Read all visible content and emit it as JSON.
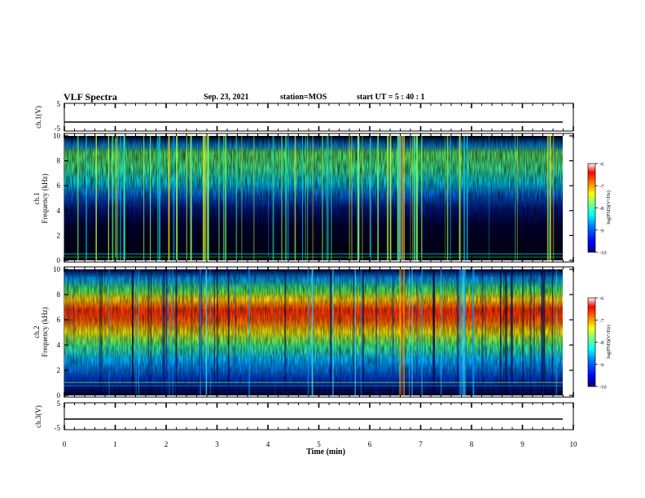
{
  "header": {
    "title": "VLF Spectra",
    "date": "Sep. 23, 2021",
    "station": "station=MOS",
    "start_ut": "start  UT  =   5  : 40 : 1"
  },
  "chart_data": [
    {
      "type": "line",
      "panel": "ch1-waveform",
      "ylabel": "ch.1(V)",
      "ylim": [
        -5,
        5
      ],
      "yticks": [
        "5",
        "-5"
      ],
      "xlim": [
        0,
        10
      ],
      "series": [
        {
          "values": [
            -2.0,
            -2.0
          ]
        }
      ]
    },
    {
      "type": "heatmap",
      "panel": "ch1-spectrogram",
      "ylabel": "ch.1\nFrequency (kHz)",
      "ylabel_lines": [
        "ch.1",
        "Frequency (kHz)"
      ],
      "ylim": [
        0,
        10
      ],
      "yticks": [
        "0",
        "2",
        "4",
        "6",
        "8",
        "10"
      ],
      "xlim": [
        0,
        9.83
      ],
      "colorbar": {
        "label": "log(PSD)(V²/Hz)",
        "ticks": [
          "-6",
          "-7",
          "-8",
          "-9",
          "-10"
        ],
        "range": [
          -10,
          -6
        ]
      }
    },
    {
      "type": "heatmap",
      "panel": "ch2-spectrogram",
      "ylabel": "ch.2\nFrequency (kHz)",
      "ylabel_lines": [
        "ch.2",
        "Frequency (kHz)"
      ],
      "ylim": [
        0,
        10
      ],
      "yticks": [
        "0",
        "2",
        "4",
        "6",
        "8",
        "10"
      ],
      "xlim": [
        0,
        9.83
      ],
      "colorbar": {
        "label": "log(PSD)(V²/Hz)",
        "ticks": [
          "-6",
          "-7",
          "-8",
          "-9",
          "-10"
        ],
        "range": [
          -10,
          -6
        ]
      }
    },
    {
      "type": "line",
      "panel": "ch3-waveform",
      "ylabel": "ch.3(V)",
      "ylim": [
        -5,
        5
      ],
      "yticks": [
        "5",
        "-5"
      ],
      "xlim": [
        0,
        10
      ],
      "series": [
        {
          "values": [
            -1.0,
            -1.0
          ]
        }
      ]
    }
  ],
  "xaxis": {
    "label": "Time  (min)",
    "range": [
      0,
      10
    ],
    "ticks": [
      "0",
      "1",
      "2",
      "3",
      "4",
      "5",
      "6",
      "7",
      "8",
      "9",
      "10"
    ]
  },
  "colors": {
    "jet": [
      "#00007f",
      "#0000ff",
      "#007fff",
      "#00ffff",
      "#7fff7f",
      "#ffff00",
      "#ff7f00",
      "#ff0000",
      "#7f0000"
    ],
    "background": "#000000"
  }
}
